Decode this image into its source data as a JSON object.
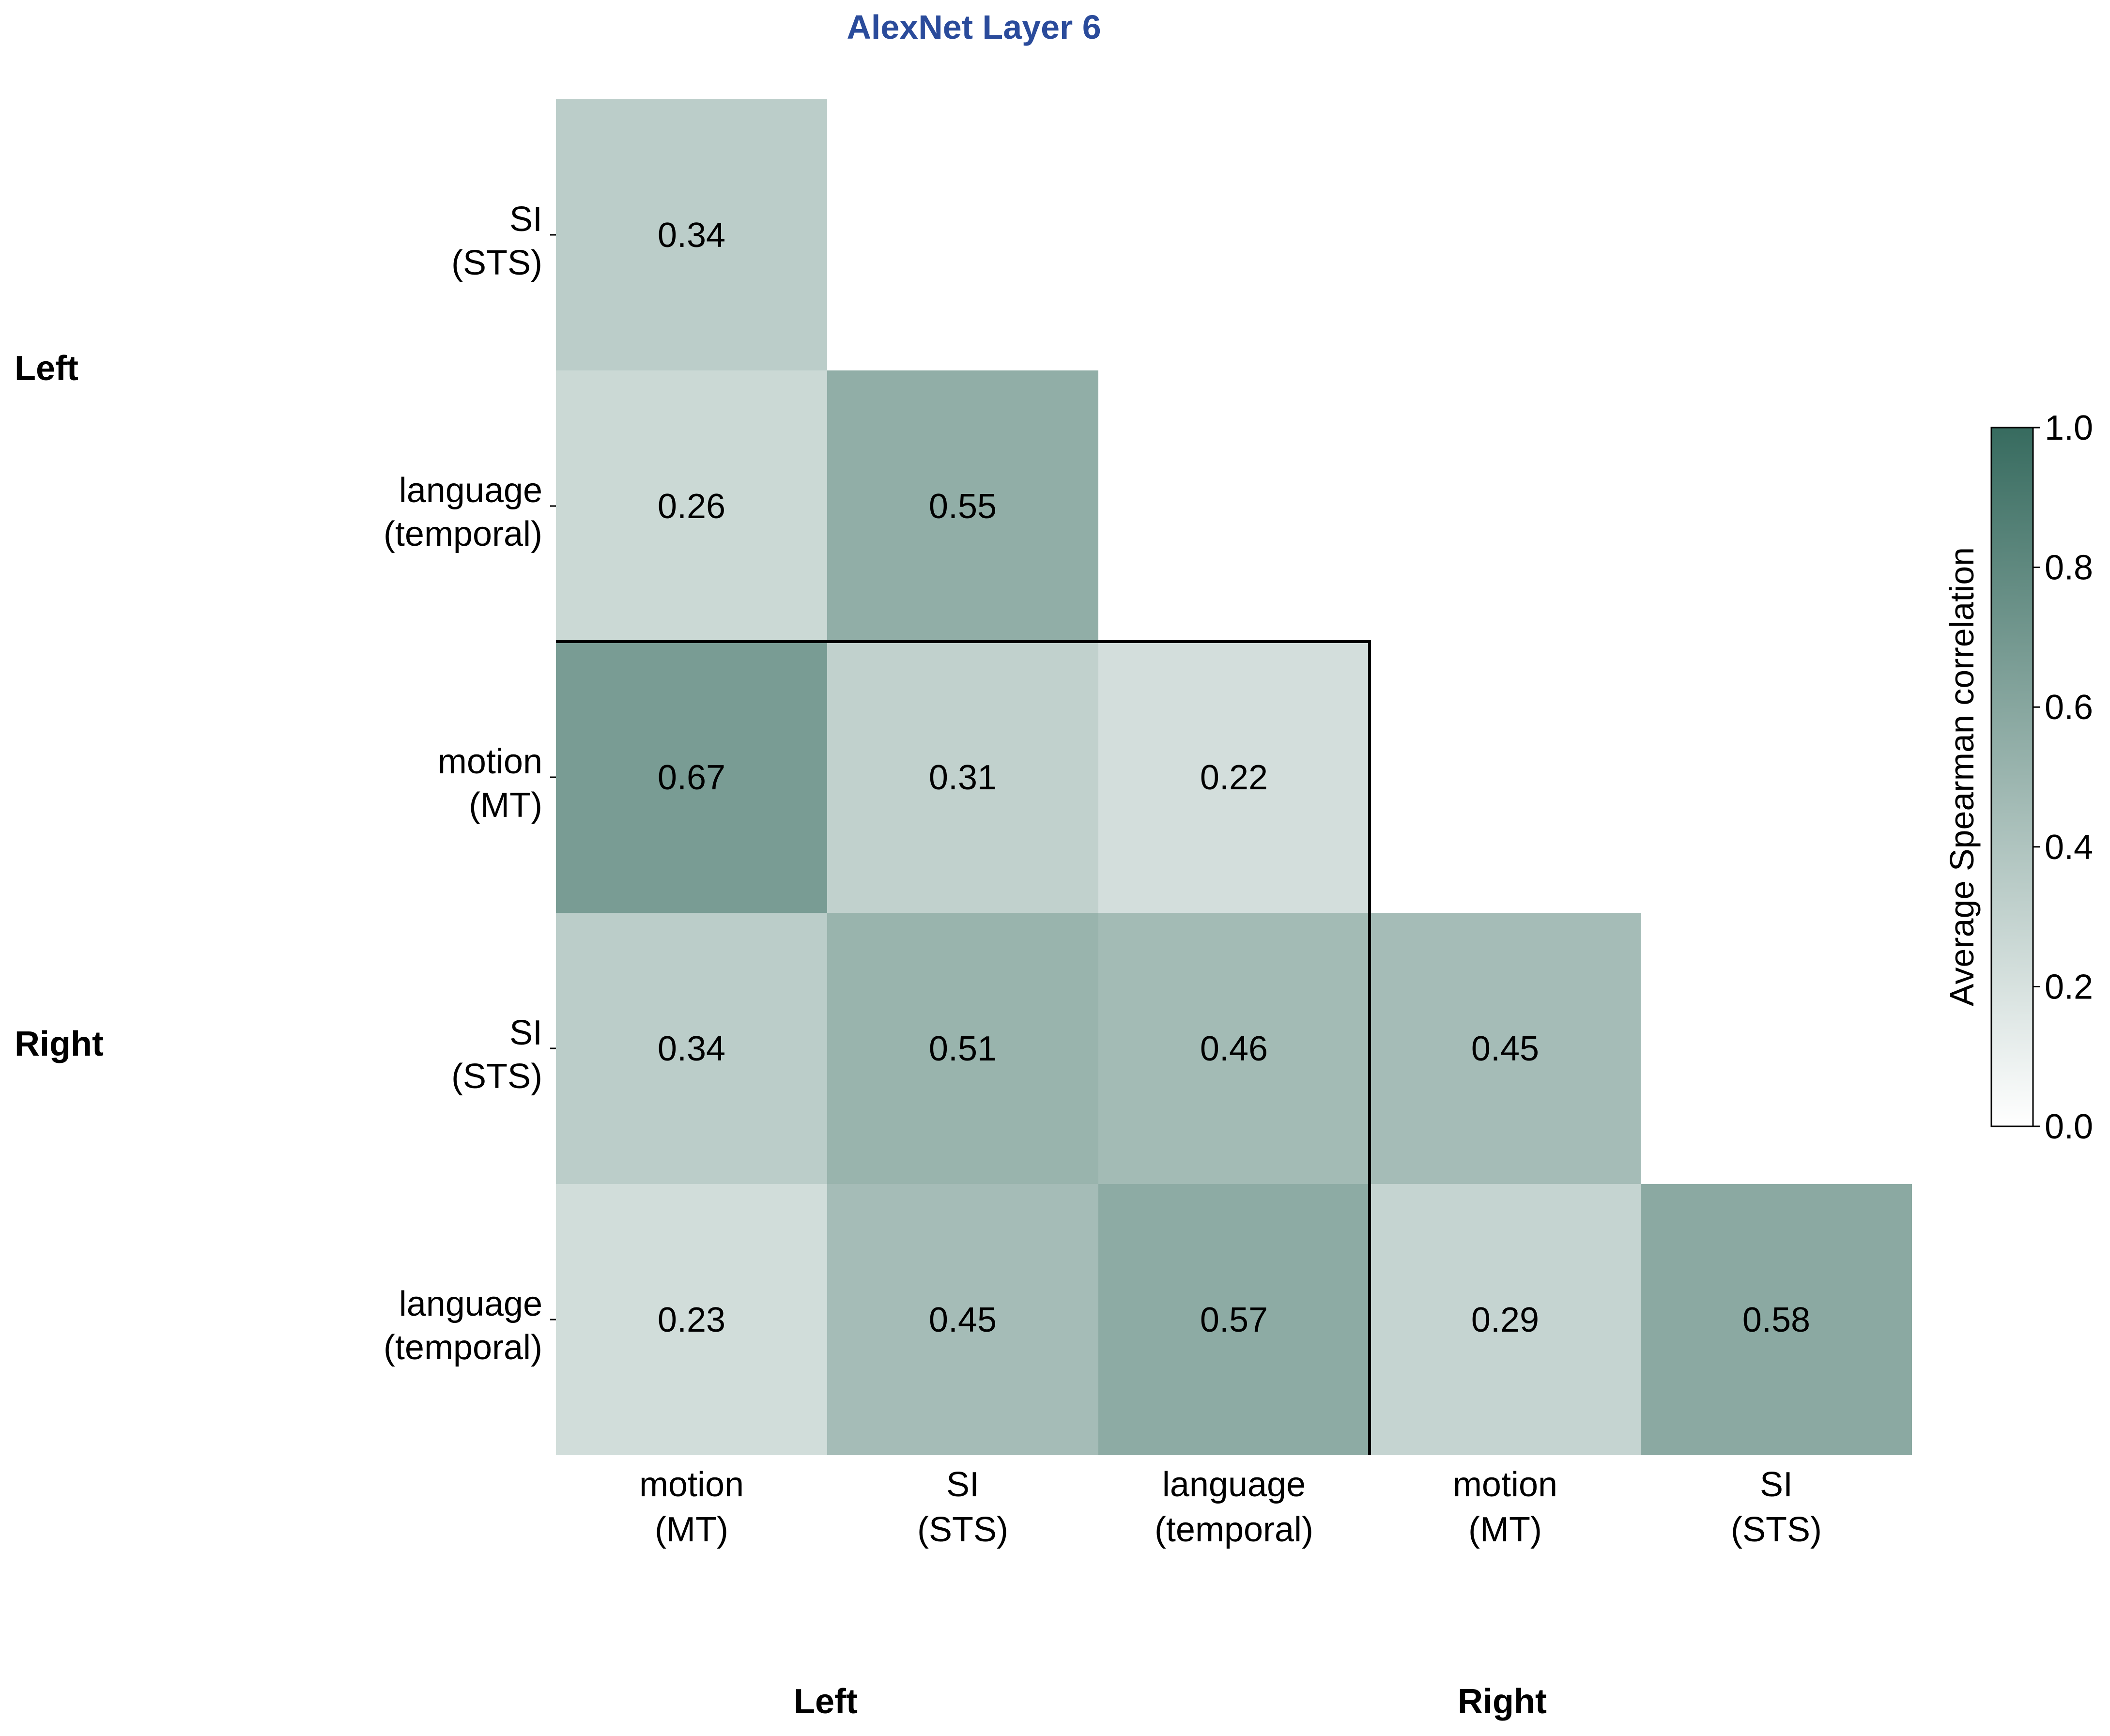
{
  "chart_data": {
    "type": "heatmap",
    "title": "AlexNet Layer 6",
    "title_color": "#2a4b9b",
    "x_categories": [
      {
        "line1": "motion",
        "line2": "(MT)"
      },
      {
        "line1": "SI",
        "line2": "(STS)"
      },
      {
        "line1": "language",
        "line2": "(temporal)"
      },
      {
        "line1": "motion",
        "line2": "(MT)"
      },
      {
        "line1": "SI",
        "line2": "(STS)"
      }
    ],
    "y_categories": [
      {
        "line1": "SI",
        "line2": "(STS)"
      },
      {
        "line1": "language",
        "line2": "(temporal)"
      },
      {
        "line1": "motion",
        "line2": "(MT)"
      },
      {
        "line1": "SI",
        "line2": "(STS)"
      },
      {
        "line1": "language",
        "line2": "(temporal)"
      }
    ],
    "x_groups": [
      "Left",
      "Right"
    ],
    "y_groups": [
      "Left",
      "Right"
    ],
    "values": [
      [
        0.34,
        null,
        null,
        null,
        null
      ],
      [
        0.26,
        0.55,
        null,
        null,
        null
      ],
      [
        0.67,
        0.31,
        0.22,
        null,
        null
      ],
      [
        0.34,
        0.51,
        0.46,
        0.45,
        null
      ],
      [
        0.23,
        0.45,
        0.57,
        0.29,
        0.58
      ]
    ],
    "value_labels": [
      [
        "0.34",
        null,
        null,
        null,
        null
      ],
      [
        "0.26",
        "0.55",
        null,
        null,
        null
      ],
      [
        "0.67",
        "0.31",
        "0.22",
        null,
        null
      ],
      [
        "0.34",
        "0.51",
        "0.46",
        "0.45",
        null
      ],
      [
        "0.23",
        "0.45",
        "0.57",
        "0.29",
        "0.58"
      ]
    ],
    "colorbar": {
      "label": "Average Spearman correlation",
      "range": [
        0.0,
        1.0
      ],
      "ticks": [
        "0.0",
        "0.2",
        "0.4",
        "0.6",
        "0.8",
        "1.0"
      ],
      "color_low": "#ffffff",
      "color_high": "#376b5f"
    },
    "block_outline": "Left–Right cross-hemisphere block outlined in black"
  }
}
